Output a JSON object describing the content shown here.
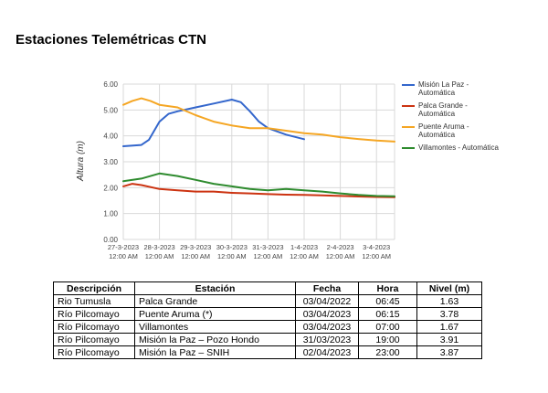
{
  "page": {
    "title": "Estaciones Telemétricas CTN"
  },
  "colors": {
    "series": [
      "#3366cc",
      "#cc3311",
      "#f5a623",
      "#2e8b2e"
    ],
    "grid": "#d9d9d9"
  },
  "chart_data": {
    "type": "line",
    "ylabel": "Altura (m)",
    "ylim": [
      0,
      6
    ],
    "yticks": [
      "0.00",
      "1.00",
      "2.00",
      "3.00",
      "4.00",
      "5.00",
      "6.00"
    ],
    "xlim": [
      "2023-03-27 00:00",
      "2023-04-03 12:00"
    ],
    "xticks": [
      {
        "date": "2023-03-27 00:00",
        "line1": "27-3-2023",
        "line2": "12:00 AM"
      },
      {
        "date": "2023-03-28 00:00",
        "line1": "28-3-2023",
        "line2": "12:00 AM"
      },
      {
        "date": "2023-03-29 00:00",
        "line1": "29-3-2023",
        "line2": "12:00 AM"
      },
      {
        "date": "2023-03-30 00:00",
        "line1": "30-3-2023",
        "line2": "12:00 AM"
      },
      {
        "date": "2023-03-31 00:00",
        "line1": "31-3-2023",
        "line2": "12:00 AM"
      },
      {
        "date": "2023-04-01 00:00",
        "line1": "1-4-2023",
        "line2": "12:00 AM"
      },
      {
        "date": "2023-04-02 00:00",
        "line1": "2-4-2023",
        "line2": "12:00 AM"
      },
      {
        "date": "2023-04-03 00:00",
        "line1": "3-4-2023",
        "line2": "12:00 AM"
      }
    ],
    "grid": true,
    "legend_position": "right",
    "series": [
      {
        "name": "Misión La Paz - Automática",
        "points": [
          [
            "2023-03-27 00:00",
            3.6
          ],
          [
            "2023-03-27 12:00",
            3.65
          ],
          [
            "2023-03-27 17:00",
            3.85
          ],
          [
            "2023-03-28 00:00",
            4.55
          ],
          [
            "2023-03-28 06:00",
            4.85
          ],
          [
            "2023-03-28 12:00",
            4.95
          ],
          [
            "2023-03-29 00:00",
            5.1
          ],
          [
            "2023-03-29 12:00",
            5.25
          ],
          [
            "2023-03-30 00:00",
            5.4
          ],
          [
            "2023-03-30 06:00",
            5.3
          ],
          [
            "2023-03-30 12:00",
            4.95
          ],
          [
            "2023-03-30 18:00",
            4.55
          ],
          [
            "2023-03-31 00:00",
            4.3
          ],
          [
            "2023-03-31 12:00",
            4.05
          ],
          [
            "2023-04-01 00:00",
            3.87
          ]
        ]
      },
      {
        "name": "Palca Grande - Automática",
        "points": [
          [
            "2023-03-27 00:00",
            2.05
          ],
          [
            "2023-03-27 06:00",
            2.15
          ],
          [
            "2023-03-27 12:00",
            2.1
          ],
          [
            "2023-03-28 00:00",
            1.95
          ],
          [
            "2023-03-28 12:00",
            1.9
          ],
          [
            "2023-03-29 00:00",
            1.85
          ],
          [
            "2023-03-29 12:00",
            1.85
          ],
          [
            "2023-03-30 00:00",
            1.8
          ],
          [
            "2023-03-30 12:00",
            1.78
          ],
          [
            "2023-03-31 00:00",
            1.75
          ],
          [
            "2023-03-31 12:00",
            1.73
          ],
          [
            "2023-04-01 00:00",
            1.72
          ],
          [
            "2023-04-01 12:00",
            1.7
          ],
          [
            "2023-04-02 00:00",
            1.68
          ],
          [
            "2023-04-02 12:00",
            1.66
          ],
          [
            "2023-04-03 00:00",
            1.64
          ],
          [
            "2023-04-03 12:00",
            1.63
          ]
        ]
      },
      {
        "name": "Puente Aruma - Automática",
        "points": [
          [
            "2023-03-27 00:00",
            5.2
          ],
          [
            "2023-03-27 06:00",
            5.35
          ],
          [
            "2023-03-27 12:00",
            5.45
          ],
          [
            "2023-03-27 18:00",
            5.35
          ],
          [
            "2023-03-28 00:00",
            5.2
          ],
          [
            "2023-03-28 12:00",
            5.1
          ],
          [
            "2023-03-29 00:00",
            4.8
          ],
          [
            "2023-03-29 12:00",
            4.55
          ],
          [
            "2023-03-30 00:00",
            4.4
          ],
          [
            "2023-03-30 12:00",
            4.3
          ],
          [
            "2023-03-31 00:00",
            4.3
          ],
          [
            "2023-03-31 12:00",
            4.2
          ],
          [
            "2023-04-01 00:00",
            4.1
          ],
          [
            "2023-04-01 12:00",
            4.05
          ],
          [
            "2023-04-02 00:00",
            3.95
          ],
          [
            "2023-04-02 12:00",
            3.88
          ],
          [
            "2023-04-03 00:00",
            3.82
          ],
          [
            "2023-04-03 12:00",
            3.78
          ]
        ]
      },
      {
        "name": "Villamontes - Automática",
        "points": [
          [
            "2023-03-27 00:00",
            2.25
          ],
          [
            "2023-03-27 12:00",
            2.35
          ],
          [
            "2023-03-28 00:00",
            2.55
          ],
          [
            "2023-03-28 12:00",
            2.45
          ],
          [
            "2023-03-29 00:00",
            2.3
          ],
          [
            "2023-03-29 12:00",
            2.15
          ],
          [
            "2023-03-30 00:00",
            2.05
          ],
          [
            "2023-03-30 12:00",
            1.95
          ],
          [
            "2023-03-31 00:00",
            1.9
          ],
          [
            "2023-03-31 12:00",
            1.95
          ],
          [
            "2023-04-01 00:00",
            1.9
          ],
          [
            "2023-04-01 12:00",
            1.85
          ],
          [
            "2023-04-02 00:00",
            1.78
          ],
          [
            "2023-04-02 12:00",
            1.72
          ],
          [
            "2023-04-03 00:00",
            1.68
          ],
          [
            "2023-04-03 12:00",
            1.67
          ]
        ]
      }
    ]
  },
  "table": {
    "headers": [
      "Descripción",
      "Estación",
      "Fecha",
      "Hora",
      "Nivel (m)"
    ],
    "rows": [
      [
        "Rio Tumusla",
        "Palca Grande",
        "03/04/2022",
        "06:45",
        "1.63"
      ],
      [
        "Río Pilcomayo",
        "Puente Aruma (*)",
        "03/04/2023",
        "06:15",
        "3.78"
      ],
      [
        "Río Pilcomayo",
        "Villamontes",
        "03/04/2023",
        "07:00",
        "1.67"
      ],
      [
        "Río Pilcomayo",
        "Misión la Paz – Pozo Hondo",
        "31/03/2023",
        "19:00",
        "3.91"
      ],
      [
        "Río Pilcomayo",
        "Misión la Paz – SNIH",
        "02/04/2023",
        "23:00",
        "3.87"
      ]
    ]
  }
}
